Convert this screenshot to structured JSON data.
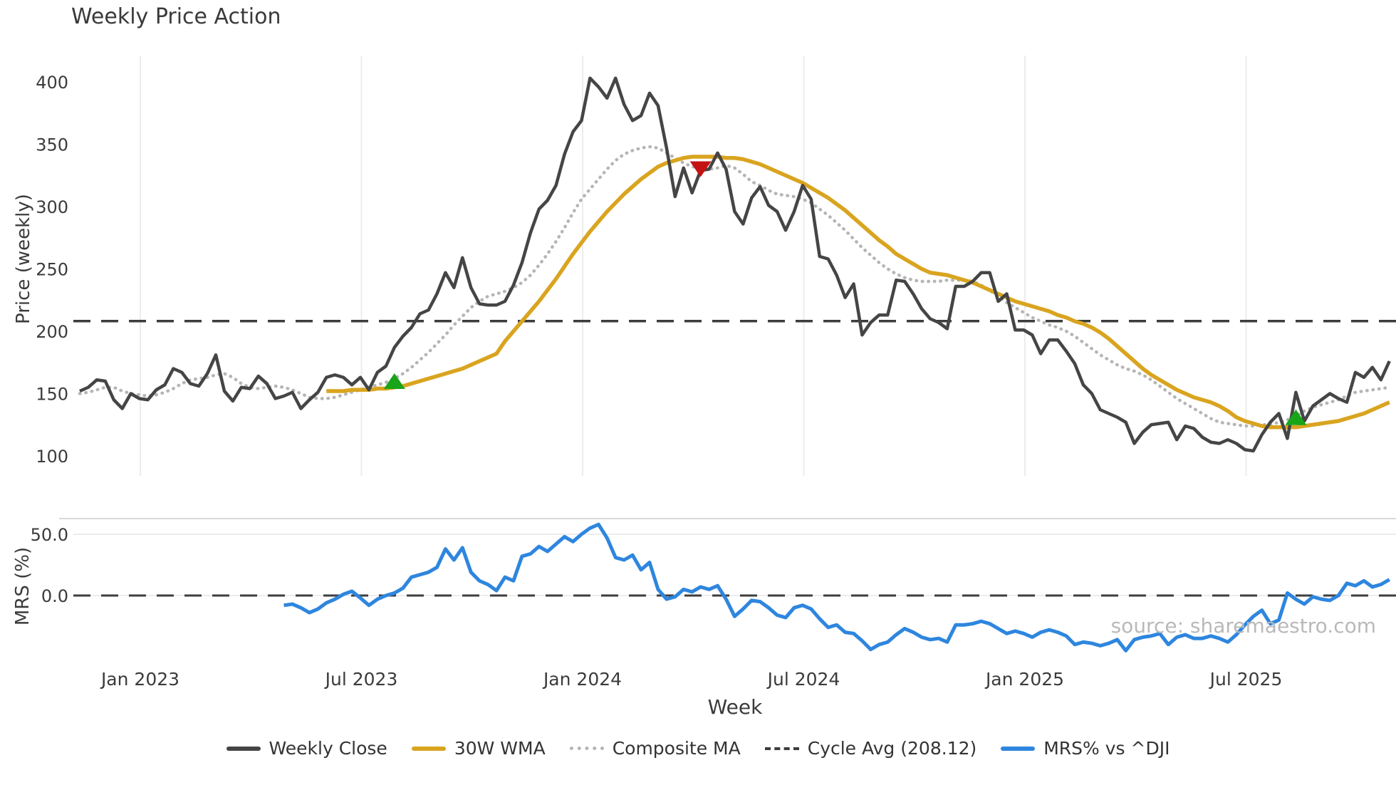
{
  "title": "Weekly Price Action",
  "watermark": "source: sharemaestro.com",
  "colors": {
    "weekly_close": "#454545",
    "wma_30": "#d9a41f",
    "composite_ma": "#b5b5b5",
    "cycle_avg": "#3d3d3d",
    "mrs": "#2e86de",
    "buy_marker": "#18a518",
    "sell_marker": "#c41212",
    "gridline": "#ececec",
    "spine": "#d8d8d8",
    "text": "#3b3b3b",
    "watermark": "#b9b9b9",
    "background": "#ffffff"
  },
  "legend": {
    "items": [
      {
        "label": "Weekly Close",
        "style": "solid",
        "color": "#454545"
      },
      {
        "label": "30W WMA",
        "style": "solid",
        "color": "#d9a41f"
      },
      {
        "label": "Composite MA",
        "style": "dotted",
        "color": "#b5b5b5"
      },
      {
        "label": "Cycle Avg (208.12)",
        "style": "dashed",
        "color": "#3d3d3d"
      },
      {
        "label": "MRS% vs ^DJI",
        "style": "solid",
        "color": "#2e86de"
      }
    ]
  },
  "chart_data": [
    {
      "type": "line",
      "panel": "price",
      "title": "Weekly Price Action",
      "xlabel": "Week",
      "ylabel": "Price (weekly)",
      "ylim": [
        85,
        425
      ],
      "yticks": [
        400,
        350,
        300,
        250,
        200,
        150,
        100
      ],
      "x_tick_labels": [
        "Jan 2023",
        "Jul 2023",
        "Jan 2024",
        "Jul 2024",
        "Jan 2025",
        "Jul 2025"
      ],
      "start_date": "2022-11-14",
      "frequency": "weekly",
      "grid": "vertical",
      "cycle_avg": 208.12,
      "series": [
        {
          "name": "Weekly Close",
          "start_week": 0,
          "values": [
            152,
            155,
            161,
            160,
            145,
            138,
            150,
            146,
            145,
            153,
            157,
            170,
            167,
            158,
            156,
            166,
            181,
            152,
            144,
            155,
            154,
            164,
            158,
            146,
            148,
            151,
            138,
            145,
            151,
            163,
            165,
            163,
            157,
            163,
            153,
            167,
            172,
            187,
            196,
            203,
            214,
            217,
            230,
            247,
            235,
            259,
            235,
            222,
            221,
            221,
            224,
            237,
            255,
            279,
            298,
            305,
            317,
            342,
            360,
            369,
            403,
            396,
            387,
            403,
            382,
            369,
            373,
            391,
            381,
            347,
            308,
            331,
            311,
            329,
            330,
            343,
            330,
            296,
            286,
            307,
            316,
            301,
            296,
            281,
            296,
            317,
            306,
            260,
            258,
            245,
            227,
            238,
            197,
            207,
            213,
            213,
            241,
            240,
            230,
            218,
            210,
            207,
            202,
            236,
            236,
            240,
            247,
            247,
            224,
            230,
            201,
            201,
            197,
            182,
            193,
            193,
            184,
            174,
            157,
            150,
            137,
            134,
            131,
            127,
            110,
            119,
            125,
            126,
            127,
            113,
            124,
            122,
            115,
            111,
            110,
            113,
            110,
            105,
            104,
            117,
            127,
            134,
            114,
            151,
            128,
            140,
            145,
            150,
            146,
            143,
            167,
            163,
            171,
            161,
            176
          ]
        },
        {
          "name": "30W WMA",
          "start_week": 29,
          "values": [
            152,
            152,
            152,
            153,
            153,
            153,
            154,
            154,
            155,
            156,
            158,
            160,
            162,
            164,
            166,
            168,
            170,
            173,
            176,
            179,
            182,
            192,
            200,
            208,
            216,
            224,
            233,
            242,
            252,
            262,
            271,
            280,
            288,
            296,
            303,
            310,
            316,
            322,
            327,
            332,
            335,
            337,
            339,
            340,
            340,
            340,
            340,
            339,
            339,
            338,
            336,
            334,
            331,
            328,
            325,
            322,
            319,
            315,
            311,
            307,
            302,
            297,
            291,
            285,
            279,
            273,
            268,
            262,
            258,
            254,
            250,
            247,
            246,
            245,
            243,
            241,
            239,
            236,
            233,
            230,
            227,
            224,
            222,
            220,
            218,
            216,
            213,
            211,
            208,
            206,
            203,
            199,
            194,
            188,
            182,
            176,
            170,
            165,
            161,
            157,
            153,
            150,
            147,
            145,
            143,
            140,
            136,
            131,
            128,
            126,
            124,
            123,
            123,
            123,
            123,
            124,
            125,
            126,
            127,
            128,
            130,
            132,
            134,
            137,
            140,
            143
          ]
        },
        {
          "name": "Composite MA",
          "start_week": 0,
          "values": [
            150,
            151,
            153,
            155,
            155,
            152,
            150,
            149,
            148,
            149,
            151,
            154,
            158,
            161,
            162,
            163,
            165,
            166,
            163,
            158,
            155,
            154,
            155,
            156,
            155,
            153,
            150,
            147,
            146,
            146,
            147,
            149,
            151,
            153,
            155,
            157,
            159,
            162,
            166,
            171,
            177,
            183,
            190,
            197,
            205,
            212,
            219,
            224,
            228,
            230,
            232,
            235,
            239,
            245,
            253,
            262,
            272,
            283,
            295,
            306,
            314,
            322,
            330,
            337,
            342,
            345,
            347,
            348,
            347,
            343,
            339,
            335,
            332,
            331,
            330,
            331,
            333,
            331,
            326,
            320,
            317,
            313,
            310,
            309,
            308,
            306,
            303,
            298,
            293,
            287,
            281,
            274,
            267,
            261,
            255,
            250,
            246,
            243,
            241,
            240,
            240,
            240,
            241,
            241,
            241,
            240,
            237,
            233,
            228,
            223,
            219,
            215,
            211,
            208,
            205,
            203,
            200,
            196,
            191,
            186,
            181,
            177,
            173,
            170,
            168,
            165,
            161,
            156,
            151,
            146,
            142,
            138,
            134,
            130,
            127,
            126,
            125,
            124,
            124,
            125,
            125,
            127,
            129,
            132,
            136,
            139,
            141,
            143,
            145,
            148,
            151,
            152,
            153,
            154,
            155
          ]
        }
      ],
      "signals": [
        {
          "type": "buy",
          "week": 37,
          "price": 160,
          "approx_date": "2023-07-31"
        },
        {
          "type": "sell",
          "week": 73,
          "price": 330,
          "approx_date": "2024-04-08"
        },
        {
          "type": "buy",
          "week": 143,
          "price": 131,
          "approx_date": "2025-08-11"
        }
      ]
    },
    {
      "type": "line",
      "panel": "mrs",
      "ylabel": "MRS (%)",
      "ylim": [
        -47,
        62
      ],
      "yticks": [
        {
          "label": "50.0",
          "value": 50
        },
        {
          "label": "0.0",
          "value": 0
        }
      ],
      "zero_line": 0,
      "grid": "horizontal",
      "series": [
        {
          "name": "MRS% vs ^DJI",
          "start_week": 24,
          "values": [
            -8,
            -7,
            -10,
            -14,
            -11,
            -6,
            -3,
            1,
            3.5,
            -2,
            -8,
            -3,
            0,
            2,
            6,
            15,
            17,
            19,
            23,
            38,
            29,
            39,
            19,
            12,
            9,
            4,
            15,
            12,
            32,
            34,
            40,
            36,
            42,
            48,
            44,
            50,
            55,
            58,
            47,
            31,
            29,
            33,
            21,
            27,
            5,
            -3,
            -1,
            5,
            3,
            7,
            5,
            8,
            -3,
            -17,
            -11,
            -4,
            -5,
            -10,
            -16,
            -18,
            -10,
            -8,
            -11,
            -19,
            -26,
            -24,
            -30,
            -31,
            -37,
            -44,
            -40,
            -38,
            -32,
            -27,
            -30,
            -34,
            -36,
            -35,
            -38,
            -24,
            -24,
            -23,
            -21,
            -23,
            -27,
            -31,
            -29,
            -31,
            -34,
            -30,
            -28,
            -30,
            -33,
            -40,
            -38,
            -39,
            -41,
            -39,
            -36,
            -45,
            -36,
            -34,
            -33,
            -31,
            -40,
            -34,
            -32,
            -35,
            -35,
            -33,
            -35,
            -38,
            -32,
            -24,
            -17,
            -12,
            -23,
            -20,
            2,
            -3,
            -7,
            -1,
            -3,
            -4,
            0,
            10,
            8,
            12,
            7,
            9,
            13
          ]
        }
      ]
    }
  ]
}
